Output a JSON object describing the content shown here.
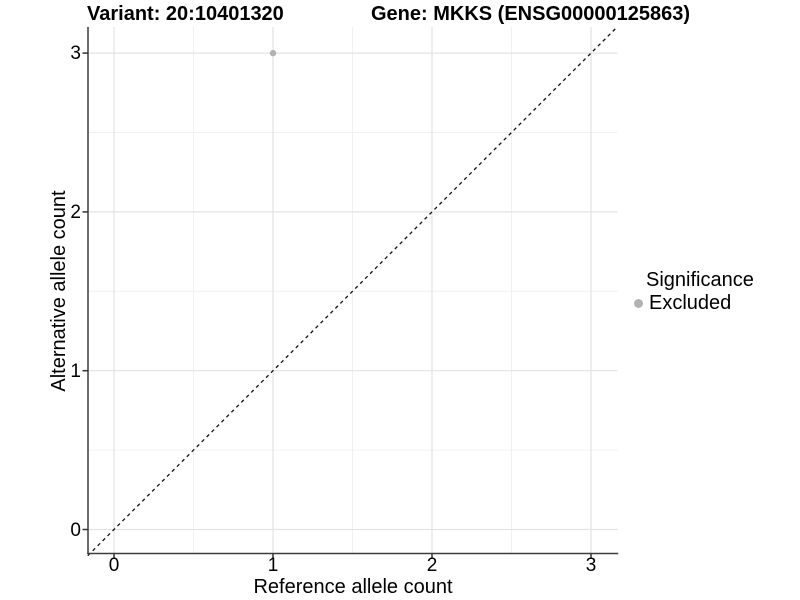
{
  "chart_data": {
    "type": "scatter",
    "title_left": "Variant: 20:10401320",
    "title_right": "Gene: MKKS (ENSG00000125863)",
    "xlabel": "Reference allele count",
    "ylabel": "Alternative allele count",
    "x_ticks": [
      "0",
      "1",
      "2",
      "3"
    ],
    "y_ticks_top_to_bottom": [
      "3",
      "2",
      "1",
      "0"
    ],
    "xlim": [
      -0.165,
      3.165
    ],
    "ylim": [
      -0.165,
      3.165
    ],
    "grid": {
      "major": true,
      "minor": true
    },
    "points": [
      {
        "x": 1,
        "y": 3,
        "group": "Excluded"
      }
    ],
    "reference_line": {
      "equation": "y = x",
      "style": "dashed"
    },
    "legend": {
      "title": "Significance",
      "position": "right",
      "items": [
        {
          "label": "Excluded",
          "color": "#b3b3b3"
        }
      ]
    },
    "colors": {
      "point_excluded": "#b3b3b3",
      "grid_major": "#e3e3e3",
      "grid_minor": "#f0f0f0",
      "axis_line": "#3d3d3d",
      "dashed_line": "#111111",
      "text": "#000000",
      "background": "#ffffff"
    }
  }
}
